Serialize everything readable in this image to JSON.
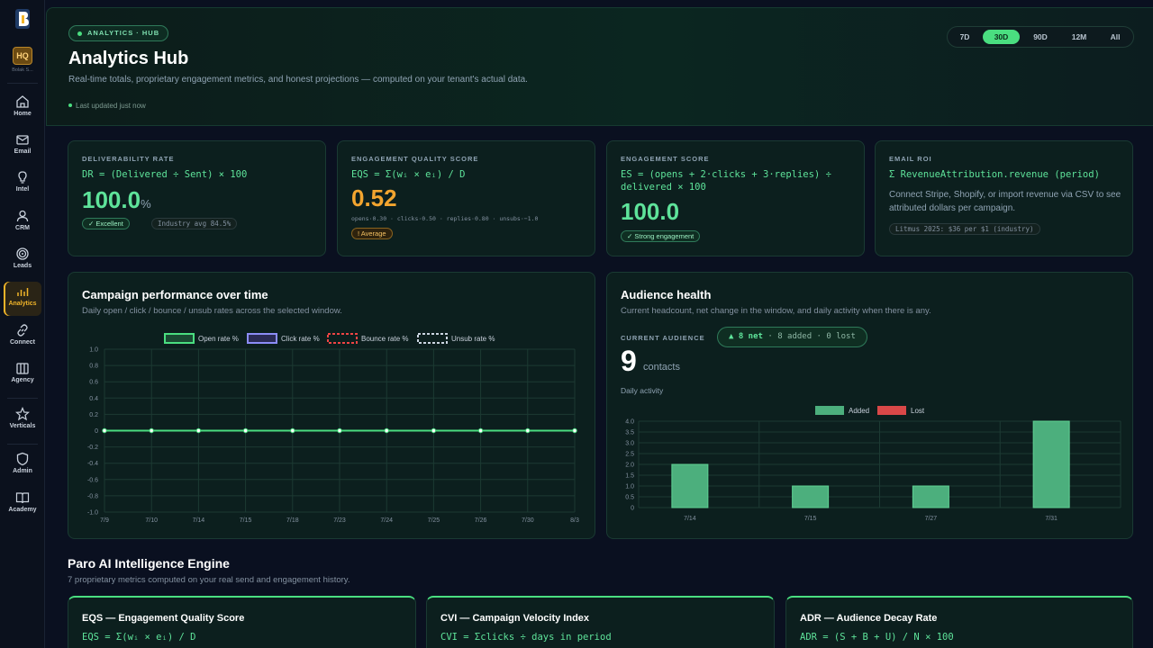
{
  "sidebar": {
    "workspace_badge": "HQ",
    "workspace_name": "Bolak S...",
    "items": [
      {
        "label": "Home",
        "icon": "home-icon"
      },
      {
        "label": "Email",
        "icon": "mail-icon"
      },
      {
        "label": "Intel",
        "icon": "lightbulb-icon"
      },
      {
        "label": "CRM",
        "icon": "person-icon"
      },
      {
        "label": "Leads",
        "icon": "target-icon"
      },
      {
        "label": "Analytics",
        "icon": "bar-chart-icon",
        "active": true
      },
      {
        "label": "Connect",
        "icon": "link-icon"
      },
      {
        "label": "Agency",
        "icon": "briefcase-icon"
      },
      {
        "label": "Verticals",
        "icon": "star-icon"
      },
      {
        "label": "Admin",
        "icon": "shield-icon"
      },
      {
        "label": "Academy",
        "icon": "book-icon"
      }
    ]
  },
  "header": {
    "badge": "ANALYTICS · HUB",
    "title": "Analytics Hub",
    "subtitle": "Real-time totals, proprietary engagement metrics, and honest projections — computed on your tenant's actual data.",
    "updated": "Last updated just now",
    "ranges": [
      "7D",
      "30D",
      "90D",
      "12M",
      "All"
    ],
    "active_range": "30D"
  },
  "kpis": {
    "deliverability": {
      "label": "DELIVERABILITY RATE",
      "formula": "DR = (Delivered ÷ Sent) × 100",
      "value": "100.0",
      "unit": "%",
      "status": "✓ Excellent",
      "benchmark": "Industry avg 84.5%"
    },
    "eqs": {
      "label": "ENGAGEMENT QUALITY SCORE",
      "formula": "EQS = Σ(wᵢ × eᵢ) / D",
      "value": "0.52",
      "weights": "opens·0.30 · clicks·0.50 · replies·0.80 · unsubs·−1.0",
      "status": "! Average"
    },
    "engagement": {
      "label": "ENGAGEMENT SCORE",
      "formula_line1": "ES = (opens + 2·clicks + 3·replies) ÷",
      "formula_line2": "delivered × 100",
      "value": "100.0",
      "status": "✓ Strong engagement"
    },
    "roi": {
      "label": "EMAIL ROI",
      "formula": "Σ RevenueAttribution.revenue (period)",
      "text": "Connect Stripe, Shopify, or import revenue via CSV to see attributed dollars per campaign.",
      "benchmark": "Litmus 2025: $36 per $1 (industry)"
    }
  },
  "campaign": {
    "title": "Campaign performance over time",
    "subtitle": "Daily open / click / bounce / unsub rates across the selected window."
  },
  "audience": {
    "title": "Audience health",
    "subtitle": "Current headcount, net change in the window, and daily activity when there is any.",
    "current_label": "CURRENT AUDIENCE",
    "net": "▲ 8 net",
    "breakdown": " · 8 added · 0 lost",
    "count": "9",
    "unit": "contacts",
    "daily_label": "Daily activity"
  },
  "chart_data": [
    {
      "type": "line",
      "title": "Campaign performance over time",
      "x": [
        "7/9",
        "7/10",
        "7/14",
        "7/15",
        "7/18",
        "7/23",
        "7/24",
        "7/25",
        "7/26",
        "7/30",
        "8/3"
      ],
      "series": [
        {
          "name": "Open rate %",
          "values": [
            0,
            0,
            0,
            0,
            0,
            0,
            0,
            0,
            0,
            0,
            0
          ],
          "color": "#4ade80"
        },
        {
          "name": "Click rate %",
          "values": [
            0,
            0,
            0,
            0,
            0,
            0,
            0,
            0,
            0,
            0,
            0
          ],
          "color": "#8b8cf6"
        },
        {
          "name": "Bounce rate %",
          "values": [
            0,
            0,
            0,
            0,
            0,
            0,
            0,
            0,
            0,
            0,
            0
          ],
          "color": "#ef4444"
        },
        {
          "name": "Unsub rate %",
          "values": [
            0,
            0,
            0,
            0,
            0,
            0,
            0,
            0,
            0,
            0,
            0
          ],
          "color": "#cbd5e1"
        }
      ],
      "y_ticks": [
        "1.0",
        "0.8",
        "0.6",
        "0.4",
        "0.2",
        "0",
        "-0.2",
        "-0.4",
        "-0.6",
        "-0.8",
        "-1.0"
      ],
      "ylim": [
        -1,
        1
      ],
      "grid": true,
      "legend": "top"
    },
    {
      "type": "bar",
      "categories": [
        "7/14",
        "7/15",
        "7/27",
        "7/31"
      ],
      "series": [
        {
          "name": "Added",
          "values": [
            2,
            1,
            1,
            4
          ],
          "color": "#4caf7d"
        },
        {
          "name": "Lost",
          "values": [
            0,
            0,
            0,
            0
          ],
          "color": "#d94848"
        }
      ],
      "y_ticks": [
        "4.0",
        "3.5",
        "3.0",
        "2.5",
        "2.0",
        "1.5",
        "1.0",
        "0.5",
        "0"
      ],
      "ylim": [
        0,
        4
      ],
      "grid": true,
      "legend": "top"
    }
  ],
  "engine": {
    "title": "Paro AI Intelligence Engine",
    "subtitle": "7 proprietary metrics computed on your real send and engagement history.",
    "cards": [
      {
        "title": "EQS — Engagement Quality Score",
        "formula": "EQS = Σ(wᵢ × eᵢ) / D"
      },
      {
        "title": "CVI — Campaign Velocity Index",
        "formula": "CVI = Σclicks ÷ days in period"
      },
      {
        "title": "ADR — Audience Decay Rate",
        "formula": "ADR = (S + B + U) / N × 100"
      }
    ]
  }
}
